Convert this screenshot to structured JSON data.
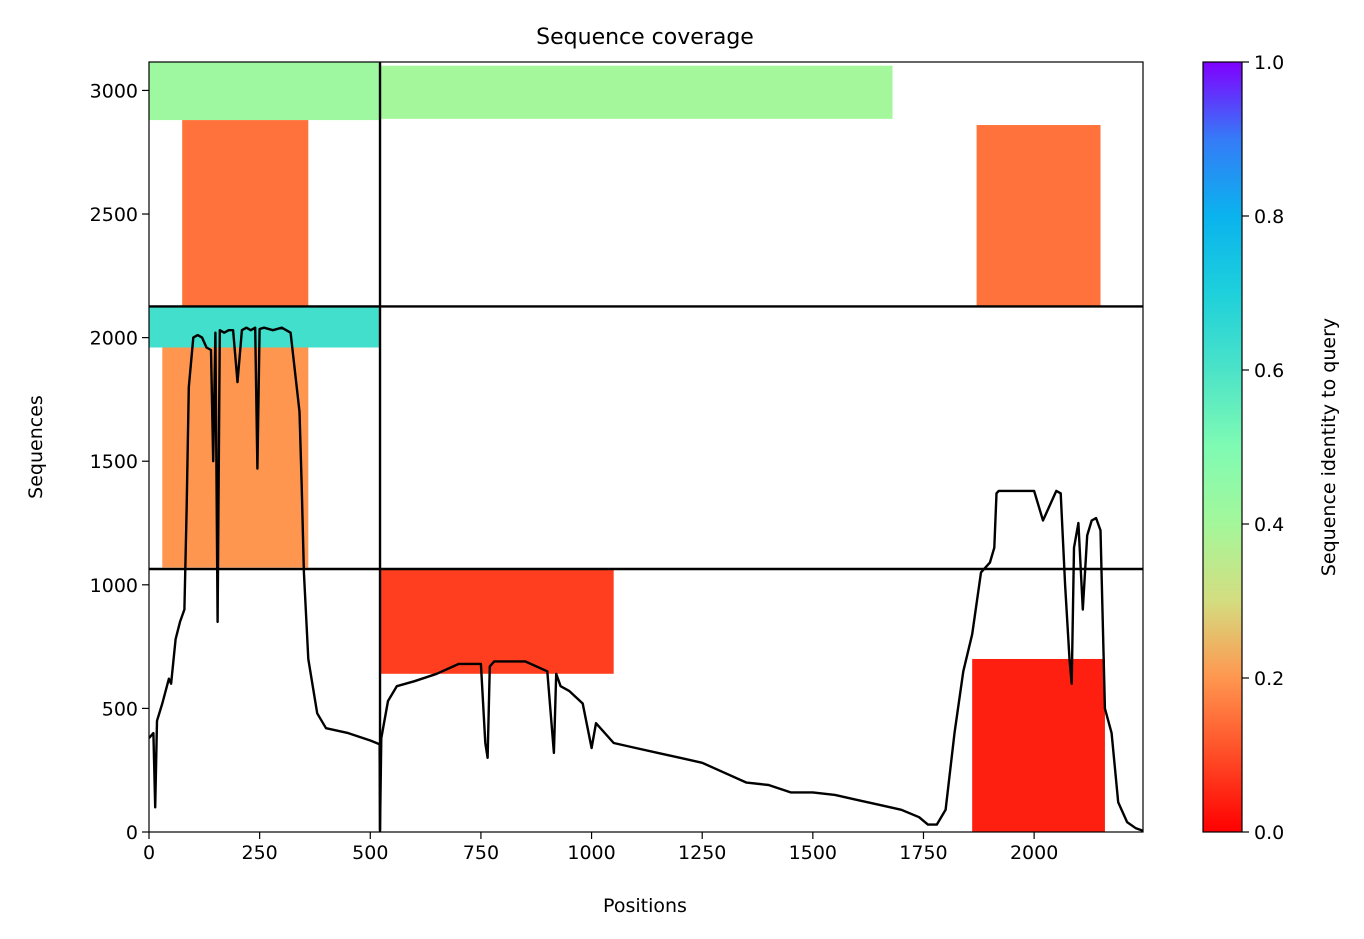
{
  "chart_data": {
    "type": "heatmap",
    "title": "Sequence coverage",
    "xlabel": "Positions",
    "ylabel": "Sequences",
    "xlim": [
      0,
      2246
    ],
    "ylim": [
      0,
      3115
    ],
    "x_ticks": [
      0,
      250,
      500,
      750,
      1000,
      1250,
      1500,
      1750,
      2000
    ],
    "y_ticks": [
      0,
      500,
      1000,
      1500,
      2000,
      2500,
      3000
    ],
    "grid": false,
    "colorbar": {
      "label": "Sequence identity to query",
      "colormap": "rainbow_r",
      "range": [
        0.0,
        1.0
      ],
      "ticks": [
        "0.0",
        "0.2",
        "0.4",
        "0.6",
        "0.8",
        "1.0"
      ]
    },
    "section_boundaries": {
      "x": 522,
      "y": [
        1064,
        2126
      ]
    },
    "coverage_blocks": [
      {
        "x0": 0,
        "x1": 522,
        "y0": 2880,
        "y1": 3115,
        "identity": 0.42
      },
      {
        "x0": 522,
        "x1": 1680,
        "y0": 2885,
        "y1": 3100,
        "identity": 0.4
      },
      {
        "x0": 75,
        "x1": 360,
        "y0": 2130,
        "y1": 2880,
        "identity": 0.15
      },
      {
        "x0": 1870,
        "x1": 2150,
        "y0": 2130,
        "y1": 2860,
        "identity": 0.15
      },
      {
        "x0": 0,
        "x1": 522,
        "y0": 1960,
        "y1": 2126,
        "identity": 0.62
      },
      {
        "x0": 30,
        "x1": 360,
        "y0": 1070,
        "y1": 1960,
        "identity": 0.2
      },
      {
        "x0": 522,
        "x1": 1050,
        "y0": 640,
        "y1": 1064,
        "identity": 0.08
      },
      {
        "x0": 1860,
        "x1": 2160,
        "y0": 0,
        "y1": 700,
        "identity": 0.04
      }
    ],
    "coverage_line": {
      "x": [
        0,
        10,
        14,
        18,
        30,
        45,
        50,
        60,
        70,
        80,
        85,
        90,
        100,
        110,
        120,
        130,
        140,
        145,
        150,
        155,
        160,
        170,
        180,
        190,
        200,
        210,
        220,
        230,
        240,
        245,
        250,
        260,
        280,
        300,
        320,
        340,
        345,
        350,
        360,
        380,
        400,
        450,
        500,
        521,
        522,
        525,
        540,
        560,
        600,
        650,
        700,
        750,
        760,
        765,
        770,
        780,
        800,
        850,
        900,
        915,
        920,
        930,
        950,
        980,
        1000,
        1010,
        1050,
        1100,
        1150,
        1200,
        1250,
        1300,
        1350,
        1400,
        1450,
        1500,
        1550,
        1600,
        1650,
        1700,
        1740,
        1760,
        1780,
        1800,
        1820,
        1840,
        1860,
        1880,
        1900,
        1910,
        1915,
        1920,
        1950,
        2000,
        2020,
        2050,
        2060,
        2070,
        2080,
        2085,
        2090,
        2100,
        2110,
        2120,
        2130,
        2140,
        2150,
        2160,
        2175,
        2190,
        2210,
        2230,
        2246
      ],
      "y": [
        380,
        400,
        100,
        450,
        520,
        620,
        600,
        780,
        850,
        900,
        1300,
        1800,
        2000,
        2010,
        2000,
        1960,
        1950,
        1500,
        2020,
        850,
        2030,
        2020,
        2030,
        2030,
        1820,
        2030,
        2040,
        2030,
        2040,
        1470,
        2035,
        2040,
        2030,
        2040,
        2020,
        1700,
        1400,
        1050,
        700,
        480,
        420,
        400,
        370,
        355,
        10,
        380,
        530,
        590,
        610,
        640,
        680,
        680,
        360,
        300,
        670,
        690,
        690,
        690,
        650,
        320,
        640,
        590,
        570,
        520,
        340,
        440,
        360,
        340,
        320,
        300,
        280,
        240,
        200,
        190,
        160,
        160,
        150,
        130,
        110,
        90,
        60,
        30,
        30,
        90,
        400,
        650,
        800,
        1050,
        1090,
        1150,
        1370,
        1380,
        1380,
        1380,
        1260,
        1380,
        1370,
        1000,
        700,
        600,
        1150,
        1250,
        900,
        1200,
        1260,
        1270,
        1220,
        500,
        400,
        120,
        40,
        15,
        5
      ]
    }
  }
}
